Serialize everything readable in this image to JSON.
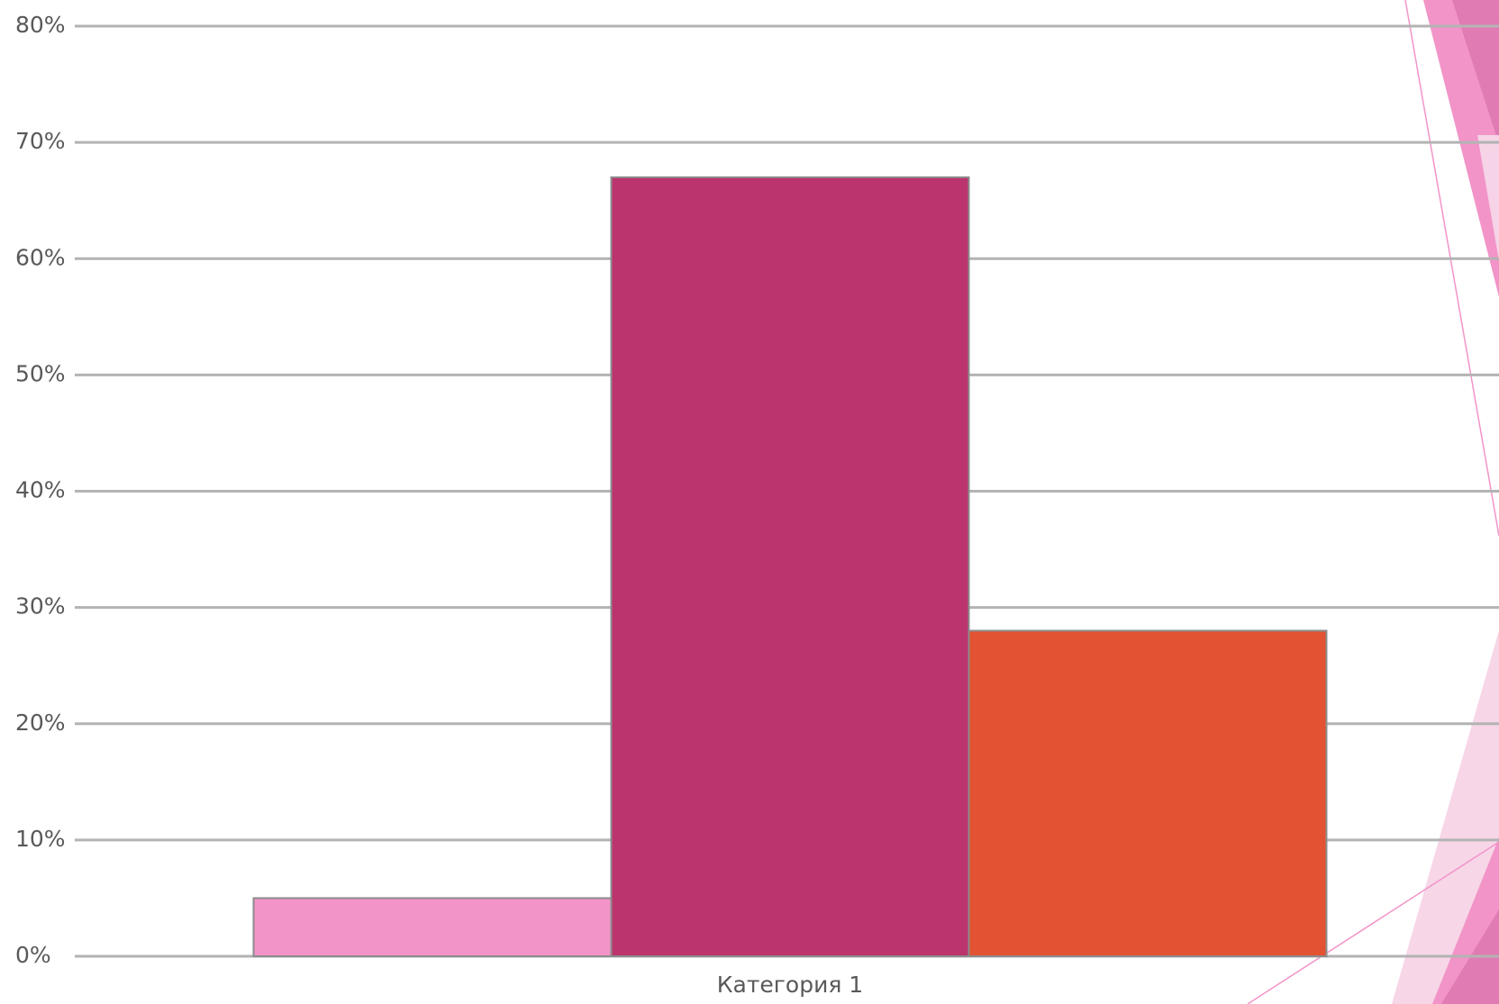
{
  "chart_data": {
    "type": "bar",
    "categories": [
      "Категория 1"
    ],
    "series": [
      {
        "color": "#f294c8",
        "values": [
          5
        ]
      },
      {
        "color": "#bb346e",
        "values": [
          67
        ]
      },
      {
        "color": "#e35231",
        "values": [
          28
        ]
      }
    ],
    "ylim": [
      0,
      80
    ],
    "yticks": [
      {
        "value": 0,
        "label": "0%"
      },
      {
        "value": 10,
        "label": "10%"
      },
      {
        "value": 20,
        "label": "20%"
      },
      {
        "value": 30,
        "label": "30%"
      },
      {
        "value": 40,
        "label": "40%"
      },
      {
        "value": 50,
        "label": "50%"
      },
      {
        "value": 60,
        "label": "60%"
      },
      {
        "value": 70,
        "label": "70%"
      },
      {
        "value": 80,
        "label": "80%"
      }
    ],
    "grid": true
  }
}
